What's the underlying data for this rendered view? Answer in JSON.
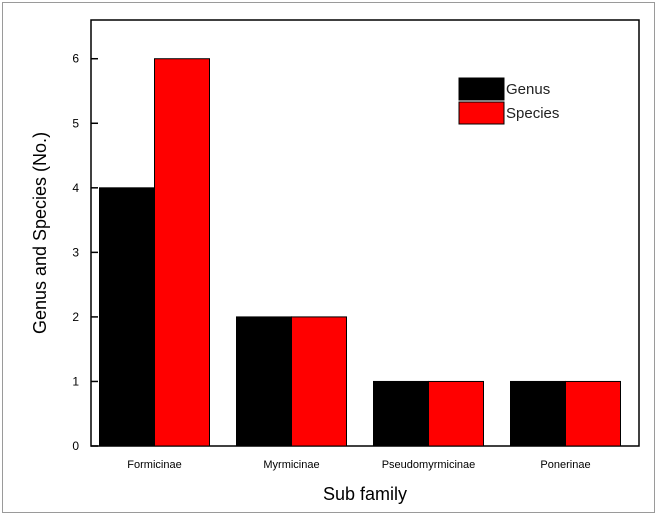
{
  "chart_data": {
    "type": "bar",
    "categories": [
      "Formicinae",
      "Myrmicinae",
      "Pseudomyrmicinae",
      "Ponerinae"
    ],
    "series": [
      {
        "name": "Genus",
        "values": [
          4,
          2,
          1,
          1
        ],
        "color": "#000000"
      },
      {
        "name": "Species",
        "values": [
          6,
          2,
          1,
          1
        ],
        "color": "#ff0000"
      }
    ],
    "xlabel": "Sub family",
    "ylabel": "Genus and Species (No.)",
    "ylim": [
      0,
      6.6
    ],
    "yticks": [
      0,
      1,
      2,
      3,
      4,
      5,
      6
    ],
    "grid": false,
    "legend_position": "top-right"
  }
}
